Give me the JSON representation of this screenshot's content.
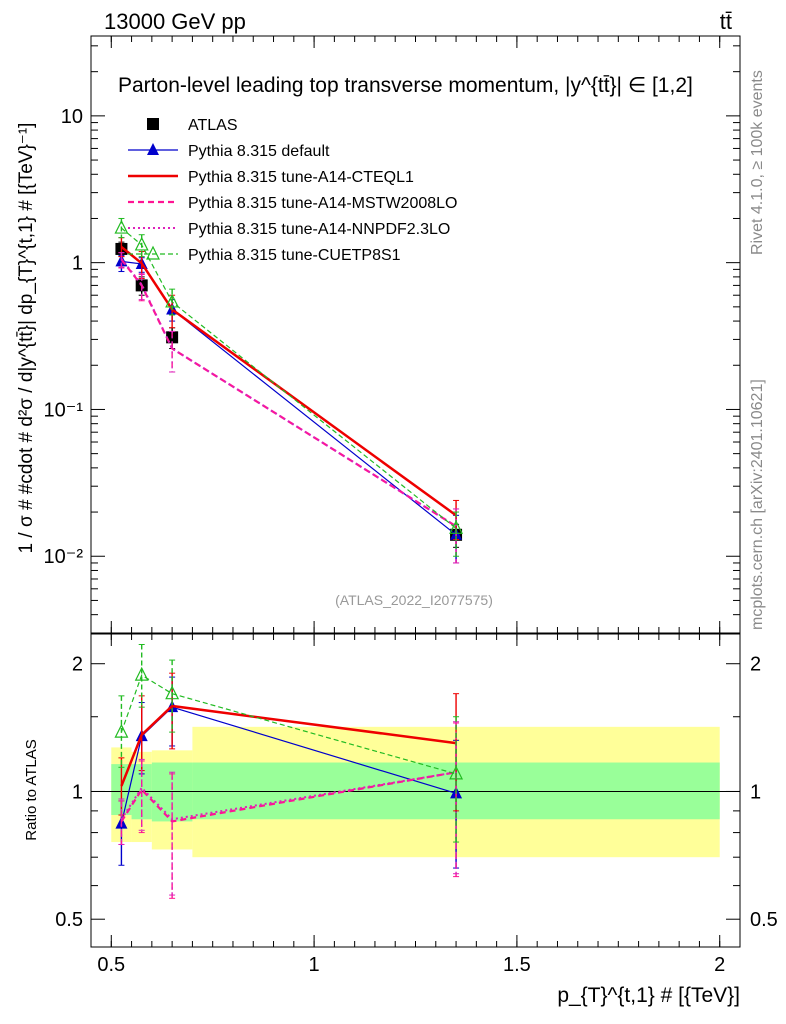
{
  "header": {
    "energy": "13000 GeV pp",
    "process": "tt̄",
    "side_rivet": "Rivet 4.1.0, ≥ 100k events",
    "side_site": "mcplots.cern.ch [arXiv:2401.10621]",
    "watermark": "(ATLAS_2022_I2077575)"
  },
  "chart_data": [
    {
      "type": "line",
      "panel": "main",
      "title": "Parton-level leading top transverse momentum, |y^{tt̄}| ∈ [1,2]",
      "xlabel": "p_{T}^{t,1} # [{TeV}]",
      "ylabel": "1 / σ # #cdot # d²σ / d|y^{tt̄}| dp_{T}^{t,1} # [{TeV}⁻¹]",
      "yscale": "log",
      "xlim": [
        0.45,
        2.05
      ],
      "ylim": [
        0.003,
        35
      ],
      "y_ticks": [
        {
          "value": 0.01,
          "label": "10⁻²"
        },
        {
          "value": 0.1,
          "label": "10⁻¹"
        },
        {
          "value": 1,
          "label": "1"
        },
        {
          "value": 10,
          "label": "10"
        }
      ],
      "x": [
        0.525,
        0.575,
        0.65,
        1.35
      ],
      "series": [
        {
          "name": "ATLAS",
          "color": "#000000",
          "style": "marker",
          "marker": "square",
          "values": [
            1.24,
            0.7,
            0.31,
            0.014
          ],
          "err_up": [
            1.38,
            0.8,
            0.36,
            0.0165
          ],
          "err_down": [
            1.1,
            0.6,
            0.26,
            0.0115
          ]
        },
        {
          "name": "Pythia 8.315 default",
          "color": "#0000cc",
          "style": "solid-thin",
          "marker": "triangle",
          "values": [
            1.02,
            0.98,
            0.48,
            0.014
          ],
          "err_up": [
            1.12,
            1.08,
            0.56,
            0.019
          ],
          "err_down": [
            0.87,
            0.86,
            0.4,
            0.009
          ]
        },
        {
          "name": "Pythia 8.315 tune-A14-CTEQL1",
          "color": "#ee0000",
          "style": "solid-thick",
          "marker": "none",
          "values": [
            1.28,
            0.99,
            0.48,
            0.019
          ],
          "err_up": [
            1.48,
            1.19,
            0.6,
            0.024
          ],
          "err_down": [
            1.1,
            0.78,
            0.36,
            0.013
          ]
        },
        {
          "name": "Pythia 8.315 tune-A14-MSTW2008LO",
          "color": "#ff1493",
          "style": "dashed",
          "marker": "none",
          "values": [
            1.05,
            0.7,
            0.26,
            0.016
          ],
          "err_up": [
            1.17,
            0.83,
            0.34,
            0.021
          ],
          "err_down": [
            0.92,
            0.55,
            0.18,
            0.009
          ]
        },
        {
          "name": "Pythia 8.315 tune-A14-NNPDF2.3LO",
          "color": "#dd22bb",
          "style": "dotted",
          "marker": "none",
          "values": [
            1.06,
            0.71,
            0.26,
            0.016
          ],
          "err_up": [
            1.17,
            0.84,
            0.34,
            0.021
          ],
          "err_down": [
            0.93,
            0.56,
            0.18,
            0.009
          ]
        },
        {
          "name": "Pythia 8.315 tune-CUETP8S1",
          "color": "#22bb22",
          "style": "dashed-thin",
          "marker": "open-triangle",
          "values": [
            1.72,
            1.32,
            0.54,
            0.0155
          ],
          "err_up": [
            2.0,
            1.55,
            0.66,
            0.02
          ],
          "err_down": [
            1.48,
            1.1,
            0.44,
            0.01
          ]
        }
      ]
    },
    {
      "type": "line",
      "panel": "ratio",
      "ylabel": "Ratio to ATLAS",
      "xlabel": "p_{T}^{t,1} # [{TeV}]",
      "yscale": "log",
      "xlim": [
        0.45,
        2.05
      ],
      "ylim": [
        0.43,
        2.35
      ],
      "x_ticks": [
        {
          "value": 0.5,
          "label": "0.5"
        },
        {
          "value": 1,
          "label": "1"
        },
        {
          "value": 1.5,
          "label": "1.5"
        },
        {
          "value": 2,
          "label": "2"
        }
      ],
      "y_ticks": [
        {
          "value": 0.5,
          "label": "0.5"
        },
        {
          "value": 1,
          "label": "1"
        },
        {
          "value": 2,
          "label": "2"
        }
      ],
      "uncertainty_bins": [
        {
          "x0": 0.5,
          "x1": 0.55,
          "inner": [
            0.88,
            1.16
          ],
          "outer": [
            0.76,
            1.27
          ]
        },
        {
          "x0": 0.55,
          "x1": 0.6,
          "inner": [
            0.86,
            1.16
          ],
          "outer": [
            0.76,
            1.24
          ]
        },
        {
          "x0": 0.6,
          "x1": 0.7,
          "inner": [
            0.85,
            1.17
          ],
          "outer": [
            0.73,
            1.25
          ]
        },
        {
          "x0": 0.7,
          "x1": 2.0,
          "inner": [
            0.86,
            1.17
          ],
          "outer": [
            0.7,
            1.42
          ]
        }
      ],
      "x": [
        0.525,
        0.575,
        0.65,
        1.35
      ],
      "series": [
        {
          "name": "Pythia 8.315 default",
          "color": "#0000cc",
          "style": "solid-thin",
          "marker": "triangle",
          "values": [
            0.84,
            1.35,
            1.58,
            0.99
          ],
          "err_up": [
            0.95,
            1.62,
            1.86,
            1.32
          ],
          "err_down": [
            0.67,
            1.1,
            1.28,
            0.66
          ]
        },
        {
          "name": "Pythia 8.315 tune-A14-CTEQL1",
          "color": "#ee0000",
          "style": "solid-thick",
          "marker": "none",
          "values": [
            1.03,
            1.36,
            1.59,
            1.3
          ],
          "err_up": [
            1.2,
            1.68,
            1.9,
            1.7
          ],
          "err_down": [
            0.88,
            1.12,
            1.26,
            0.9
          ]
        },
        {
          "name": "Pythia 8.315 tune-A14-MSTW2008LO",
          "color": "#ff1493",
          "style": "dashed",
          "marker": "none",
          "values": [
            0.85,
            1.01,
            0.85,
            1.11
          ],
          "err_up": [
            0.95,
            1.18,
            1.1,
            1.45
          ],
          "err_down": [
            0.75,
            0.8,
            0.56,
            0.63
          ]
        },
        {
          "name": "Pythia 8.315 tune-A14-NNPDF2.3LO",
          "color": "#dd22bb",
          "style": "dotted",
          "marker": "none",
          "values": [
            0.86,
            1.02,
            0.86,
            1.11
          ],
          "err_up": [
            0.96,
            1.19,
            1.11,
            1.46
          ],
          "err_down": [
            0.75,
            0.81,
            0.57,
            0.64
          ]
        },
        {
          "name": "Pythia 8.315 tune-CUETP8S1",
          "color": "#22bb22",
          "style": "dashed-thin",
          "marker": "open-triangle",
          "values": [
            1.38,
            1.88,
            1.7,
            1.1
          ],
          "err_up": [
            1.68,
            2.22,
            2.04,
            1.5
          ],
          "err_down": [
            1.14,
            1.58,
            1.38,
            0.76
          ]
        }
      ]
    }
  ]
}
